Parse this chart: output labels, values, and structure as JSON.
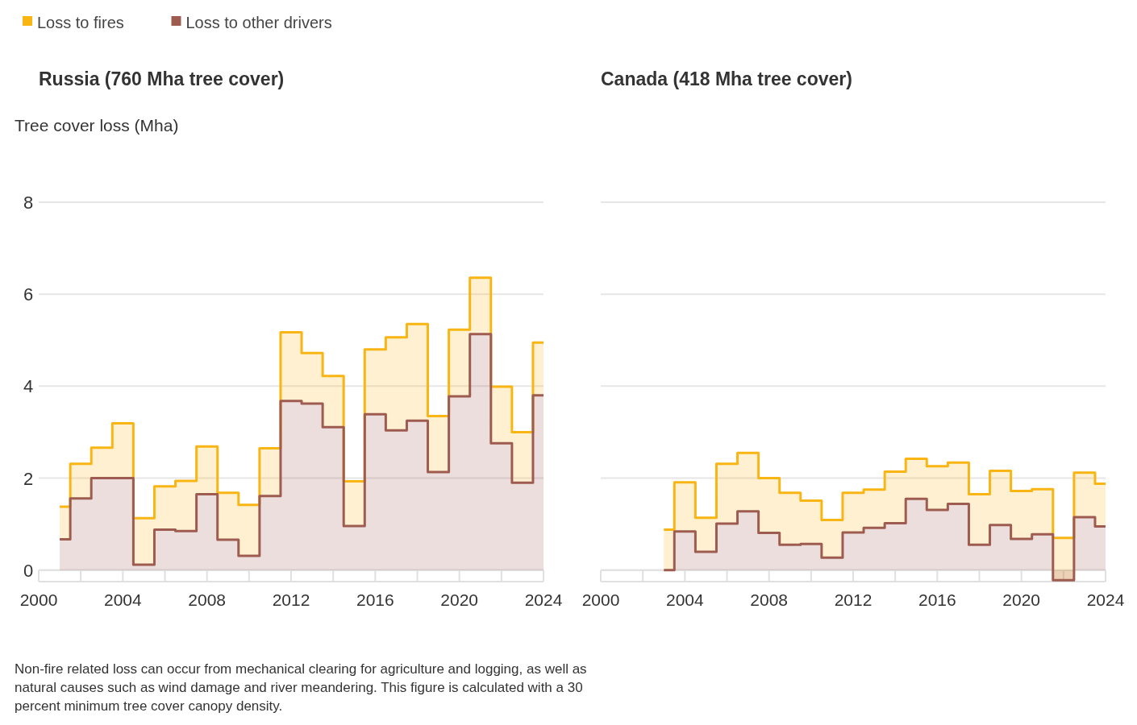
{
  "chart_data": [
    {
      "type": "step",
      "title": "Russia (760 Mha tree cover)",
      "ylabel": "Tree cover loss (Mha)",
      "x": [
        2001,
        2002,
        2003,
        2004,
        2005,
        2006,
        2007,
        2008,
        2009,
        2010,
        2011,
        2012,
        2013,
        2014,
        2015,
        2016,
        2017,
        2018,
        2019,
        2020,
        2021,
        2022,
        2023,
        2024
      ],
      "series": [
        {
          "name": "Loss to fires",
          "color": "#f9b514",
          "values": [
            1.38,
            2.31,
            2.66,
            3.19,
            1.13,
            1.82,
            1.94,
            2.69,
            1.68,
            1.42,
            2.65,
            5.17,
            4.72,
            4.22,
            1.93,
            4.8,
            5.06,
            5.35,
            3.35,
            5.23,
            6.36,
            3.99,
            3.0,
            4.95
          ],
          "lower": [
            0.67,
            1.56,
            2.0,
            2.0,
            0.12,
            0.88,
            0.85,
            1.65,
            0.66,
            0.31,
            1.61,
            3.68,
            3.62,
            3.11,
            0.96,
            3.39,
            3.04,
            3.25,
            2.13,
            3.78,
            5.13,
            2.76,
            1.9,
            3.8
          ],
          "upper": [
            1.38,
            2.31,
            2.66,
            3.19,
            1.13,
            1.82,
            1.94,
            2.69,
            1.68,
            1.42,
            2.65,
            5.17,
            4.72,
            4.22,
            1.93,
            4.8,
            5.06,
            5.35,
            3.35,
            5.23,
            6.36,
            3.99,
            3.0,
            4.95
          ]
        },
        {
          "name": "Loss to other drivers",
          "color": "#9e5b50",
          "values": [
            0.67,
            1.56,
            2.0,
            2.0,
            0.12,
            0.88,
            0.85,
            1.65,
            0.66,
            0.31,
            1.61,
            3.68,
            3.62,
            3.11,
            0.96,
            3.39,
            3.04,
            3.25,
            2.13,
            3.78,
            5.13,
            2.76,
            1.9,
            3.8
          ],
          "lower": [
            0,
            0,
            0,
            0,
            0,
            0,
            0,
            0,
            0,
            0,
            0,
            0,
            0,
            0,
            0,
            0,
            0,
            0,
            0,
            0,
            0,
            0,
            0,
            0
          ],
          "upper": [
            0.67,
            1.56,
            2.0,
            2.0,
            0.12,
            0.88,
            0.85,
            1.65,
            0.66,
            0.31,
            1.61,
            3.68,
            3.62,
            3.11,
            0.96,
            3.39,
            3.04,
            3.25,
            2.13,
            3.78,
            5.13,
            2.76,
            1.9,
            3.8
          ]
        }
      ],
      "xlim": [
        2000,
        2024
      ],
      "xticks": [
        2000,
        {
          "value": 2002,
          "label": null
        },
        2004,
        {
          "value": 2006,
          "label": null
        },
        2008,
        {
          "value": 2010,
          "label": null
        },
        2012,
        {
          "value": 2014,
          "label": null
        },
        2016,
        {
          "value": 2018,
          "label": null
        },
        2020,
        {
          "value": 2022,
          "label": null
        },
        2024
      ],
      "ylim": [
        -0.25,
        8
      ],
      "yticks": [
        0,
        2,
        4,
        6,
        8
      ],
      "grid": "y",
      "legend": "top left",
      "annotations": [
        "Non-fire related loss can occur from mechanical clearing for agriculture and logging, as well as natural causes such as wind damage and river meandering. This figure is calculated with a 30 percent minimum tree cover canopy density."
      ]
    },
    {
      "type": "step",
      "title": "Canada (418 Mha tree cover)",
      "x": [
        2003,
        2004,
        2005,
        2006,
        2007,
        2008,
        2009,
        2010,
        2011,
        2012,
        2013,
        2014,
        2015,
        2016,
        2017,
        2018,
        2019,
        2020,
        2021,
        2022,
        2023,
        2024
      ],
      "series": [
        {
          "color": "#f9b514",
          "values": [
            0.88,
            1.91,
            1.14,
            2.31,
            2.55,
            2.0,
            1.68,
            1.51,
            1.09,
            1.68,
            1.75,
            2.14,
            2.42,
            2.26,
            2.34,
            1.65,
            2.16,
            1.72,
            1.76,
            0.7,
            2.12,
            1.88
          ],
          "lower": [
            0,
            0.84,
            0.4,
            1.01,
            1.28,
            0.81,
            0.55,
            0.57,
            0.27,
            0.82,
            0.92,
            1.02,
            1.55,
            1.31,
            1.44,
            0.55,
            0.98,
            0.68,
            0.78,
            -0.22,
            1.15,
            0.95
          ],
          "upper": [
            0.88,
            1.91,
            1.14,
            2.31,
            2.55,
            2.0,
            1.68,
            1.51,
            1.09,
            1.68,
            1.75,
            2.14,
            2.42,
            2.26,
            2.34,
            1.65,
            2.16,
            1.72,
            1.76,
            0.7,
            2.12,
            1.88
          ]
        },
        {
          "color": "#9e5b50",
          "values": [
            0,
            0.84,
            0.4,
            1.01,
            1.28,
            0.81,
            0.55,
            0.57,
            0.27,
            0.82,
            0.92,
            1.02,
            1.55,
            1.31,
            1.44,
            0.55,
            0.98,
            0.68,
            0.78,
            -0.22,
            1.15,
            0.95
          ],
          "lower": [
            0,
            0,
            0,
            0,
            0,
            0,
            0,
            0,
            0,
            0,
            0,
            0,
            0,
            0,
            0,
            0,
            0,
            0,
            0,
            0,
            0,
            0
          ],
          "upper": [
            0,
            0.84,
            0.4,
            1.01,
            1.28,
            0.81,
            0.55,
            0.57,
            0.27,
            0.82,
            0.92,
            1.02,
            1.55,
            1.31,
            1.44,
            0.55,
            0.98,
            0.68,
            0.78,
            -0.22,
            1.15,
            0.95
          ]
        }
      ],
      "xlim": [
        2000,
        2024
      ],
      "xticks": [
        2000,
        {
          "value": 2002,
          "label": null
        },
        2004,
        {
          "value": 2006,
          "label": null
        },
        2008,
        {
          "value": 2010,
          "label": null
        },
        2012,
        {
          "value": 2014,
          "label": null
        },
        2016,
        {
          "value": 2018,
          "label": null
        },
        2020,
        {
          "value": 2022,
          "label": null
        },
        2024
      ],
      "ylim": [
        -0.25,
        8
      ],
      "yticks": [
        0,
        2,
        4,
        6,
        8
      ],
      "grid": "y",
      "tick_labels": "x"
    }
  ]
}
